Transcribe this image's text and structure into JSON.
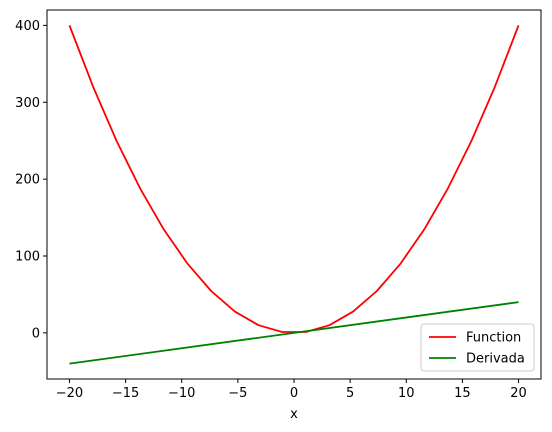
{
  "chart_data": {
    "type": "line",
    "xlabel": "x",
    "ylabel": "",
    "title": "",
    "xlim": [
      -22,
      22
    ],
    "ylim": [
      -60,
      420
    ],
    "xticks": [
      -20,
      -15,
      -10,
      -5,
      0,
      5,
      10,
      15,
      20
    ],
    "xtick_labels": [
      "−20",
      "−15",
      "−10",
      "−5",
      "0",
      "5",
      "10",
      "15",
      "20"
    ],
    "yticks": [
      0,
      100,
      200,
      300,
      400
    ],
    "ytick_labels": [
      "0",
      "100",
      "200",
      "300",
      "400"
    ],
    "grid": false,
    "legend_position": "lower-right",
    "series": [
      {
        "name": "Function",
        "color": "#ff0000",
        "x": [
          -20,
          -17.895,
          -15.789,
          -13.684,
          -11.579,
          -9.474,
          -7.368,
          -5.263,
          -3.158,
          -1.053,
          1.053,
          3.158,
          5.263,
          7.368,
          9.474,
          11.579,
          13.684,
          15.789,
          17.895,
          20
        ],
        "y": [
          400,
          320.2,
          249.3,
          187.3,
          134.1,
          89.8,
          54.3,
          27.7,
          10.0,
          1.1,
          1.1,
          10.0,
          27.7,
          54.3,
          89.8,
          134.1,
          187.3,
          249.3,
          320.2,
          400
        ]
      },
      {
        "name": "Derivada",
        "color": "#008000",
        "x": [
          -20,
          20
        ],
        "y": [
          -40,
          40
        ]
      }
    ]
  }
}
